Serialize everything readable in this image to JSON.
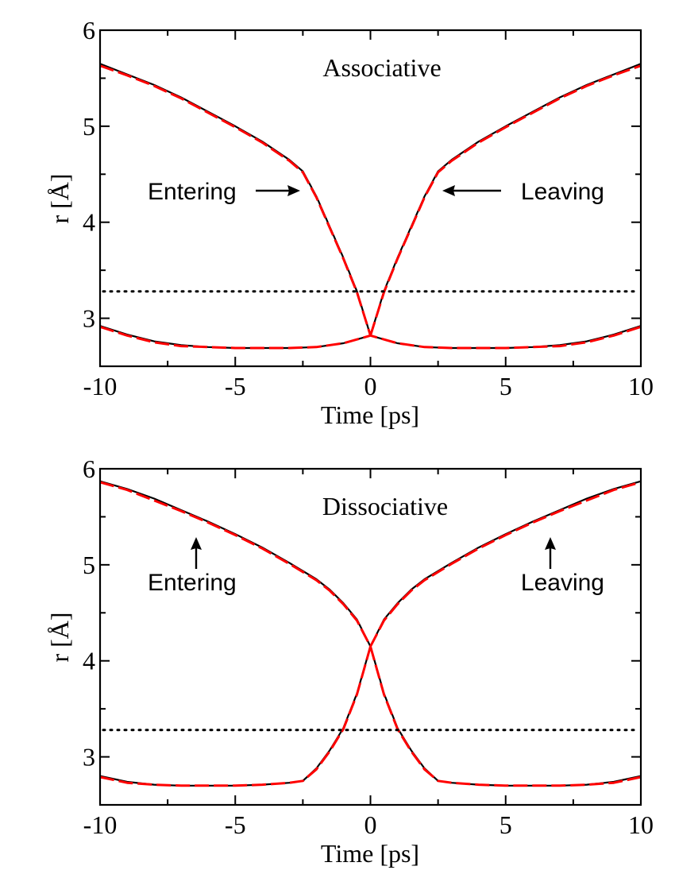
{
  "chart_data": [
    {
      "type": "line",
      "title": "Associative",
      "xlabel": "Time [ps]",
      "ylabel": "r [Å]",
      "xlim": [
        -10,
        10
      ],
      "ylim": [
        2.5,
        6.0
      ],
      "xticks": [
        -10,
        -5,
        0,
        5,
        10
      ],
      "xtick_labels": [
        "-10",
        "-5",
        "0",
        "5",
        "10"
      ],
      "yticks": [
        3,
        4,
        5,
        6
      ],
      "ytick_labels": [
        "3",
        "4",
        "5",
        "6"
      ],
      "reference_line": {
        "y": 3.28,
        "style": "dotted",
        "color": "#000000"
      },
      "annotations": [
        {
          "text": "Entering",
          "arrow_direction": "right",
          "points_to": {
            "x": -2.5,
            "y": 4.33
          }
        },
        {
          "text": "Leaving",
          "arrow_direction": "left",
          "points_to": {
            "x": 2.5,
            "y": 4.33
          }
        }
      ],
      "series": [
        {
          "style": "solid",
          "color": "#000000",
          "x": [
            -10,
            -9,
            -8,
            -7,
            -6,
            -5,
            -4,
            -3,
            -2.5,
            -2,
            -1.5,
            -1,
            -0.5,
            0
          ],
          "y": [
            5.65,
            5.54,
            5.43,
            5.3,
            5.15,
            5.0,
            4.84,
            4.65,
            4.53,
            4.27,
            3.95,
            3.63,
            3.28,
            2.82
          ]
        },
        {
          "style": "dashed",
          "color": "#ff0000",
          "x": [
            -10,
            -9,
            -8,
            -7,
            -6,
            -5,
            -4,
            -3,
            -2.5,
            -2,
            -1.5,
            -1,
            -0.5,
            0
          ],
          "y": [
            5.63,
            5.53,
            5.42,
            5.29,
            5.14,
            4.99,
            4.83,
            4.64,
            4.52,
            4.26,
            3.94,
            3.62,
            3.27,
            2.82
          ]
        },
        {
          "style": "solid",
          "color": "#000000",
          "x": [
            0,
            0.5,
            1,
            1.5,
            2,
            2.5,
            3,
            4,
            5,
            6,
            7,
            8,
            9,
            10
          ],
          "y": [
            2.82,
            3.28,
            3.63,
            3.95,
            4.27,
            4.53,
            4.65,
            4.84,
            5.0,
            5.15,
            5.3,
            5.43,
            5.54,
            5.65
          ]
        },
        {
          "style": "dashed",
          "color": "#ff0000",
          "x": [
            0,
            0.5,
            1,
            1.5,
            2,
            2.5,
            3,
            4,
            5,
            6,
            7,
            8,
            9,
            10
          ],
          "y": [
            2.82,
            3.27,
            3.62,
            3.94,
            4.26,
            4.52,
            4.64,
            4.83,
            4.99,
            5.14,
            5.29,
            5.42,
            5.53,
            5.63
          ]
        },
        {
          "style": "solid",
          "color": "#000000",
          "x": [
            -10,
            -9,
            -8,
            -7,
            -6,
            -5,
            -4,
            -3,
            -2,
            -1,
            -0.5,
            0,
            0.5,
            1,
            2,
            3,
            4,
            5,
            6,
            7,
            8,
            9,
            10
          ],
          "y": [
            2.92,
            2.83,
            2.76,
            2.72,
            2.7,
            2.69,
            2.69,
            2.69,
            2.7,
            2.74,
            2.78,
            2.82,
            2.78,
            2.74,
            2.7,
            2.69,
            2.69,
            2.69,
            2.7,
            2.72,
            2.76,
            2.83,
            2.92
          ]
        },
        {
          "style": "dashed",
          "color": "#ff0000",
          "x": [
            -10,
            -9,
            -8,
            -7,
            -6,
            -5,
            -4,
            -3,
            -2,
            -1,
            -0.5,
            0,
            0.5,
            1,
            2,
            3,
            4,
            5,
            6,
            7,
            8,
            9,
            10
          ],
          "y": [
            2.91,
            2.82,
            2.75,
            2.71,
            2.7,
            2.69,
            2.69,
            2.69,
            2.7,
            2.74,
            2.78,
            2.82,
            2.78,
            2.74,
            2.7,
            2.69,
            2.69,
            2.69,
            2.7,
            2.71,
            2.75,
            2.82,
            2.91
          ]
        }
      ]
    },
    {
      "type": "line",
      "title": "Dissociative",
      "xlabel": "Time [ps]",
      "ylabel": "r [Å]",
      "xlim": [
        -10,
        10
      ],
      "ylim": [
        2.5,
        6.0
      ],
      "xticks": [
        -10,
        -5,
        0,
        5,
        10
      ],
      "xtick_labels": [
        "-10",
        "-5",
        "0",
        "5",
        "10"
      ],
      "yticks": [
        3,
        4,
        5,
        6
      ],
      "ytick_labels": [
        "3",
        "4",
        "5",
        "6"
      ],
      "reference_line": {
        "y": 3.28,
        "style": "dotted",
        "color": "#000000"
      },
      "annotations": [
        {
          "text": "Entering",
          "arrow_direction": "up",
          "points_to": {
            "x": -6.5,
            "y": 5.48
          }
        },
        {
          "text": "Leaving",
          "arrow_direction": "up",
          "points_to": {
            "x": 6.7,
            "y": 5.48
          }
        }
      ],
      "series": [
        {
          "style": "solid",
          "color": "#000000",
          "x": [
            -10,
            -9,
            -8,
            -7,
            -6,
            -5,
            -4,
            -3,
            -2,
            -1.5,
            -1,
            -0.5,
            0
          ],
          "y": [
            5.87,
            5.79,
            5.69,
            5.57,
            5.45,
            5.32,
            5.18,
            5.02,
            4.85,
            4.74,
            4.6,
            4.43,
            4.15
          ]
        },
        {
          "style": "dashed",
          "color": "#ff0000",
          "x": [
            -10,
            -9,
            -8,
            -7,
            -6,
            -5,
            -4,
            -3,
            -2,
            -1.5,
            -1,
            -0.5,
            0
          ],
          "y": [
            5.86,
            5.78,
            5.67,
            5.56,
            5.44,
            5.31,
            5.17,
            5.01,
            4.84,
            4.73,
            4.59,
            4.42,
            4.15
          ]
        },
        {
          "style": "solid",
          "color": "#000000",
          "x": [
            0,
            0.5,
            1,
            1.5,
            2,
            3,
            4,
            5,
            6,
            7,
            8,
            9,
            10
          ],
          "y": [
            4.15,
            4.43,
            4.6,
            4.74,
            4.85,
            5.02,
            5.18,
            5.32,
            5.45,
            5.57,
            5.69,
            5.79,
            5.87
          ]
        },
        {
          "style": "dashed",
          "color": "#ff0000",
          "x": [
            0,
            0.5,
            1,
            1.5,
            2,
            3,
            4,
            5,
            6,
            7,
            8,
            9,
            10
          ],
          "y": [
            4.15,
            4.42,
            4.59,
            4.73,
            4.84,
            5.01,
            5.17,
            5.31,
            5.44,
            5.56,
            5.67,
            5.78,
            5.86
          ]
        },
        {
          "style": "solid",
          "color": "#000000",
          "x": [
            -10,
            -9,
            -8,
            -7,
            -6,
            -5,
            -4,
            -3,
            -2.5,
            -2,
            -1.5,
            -1,
            -0.5,
            0
          ],
          "y": [
            2.8,
            2.74,
            2.71,
            2.7,
            2.7,
            2.7,
            2.71,
            2.73,
            2.75,
            2.88,
            3.07,
            3.3,
            3.66,
            4.15
          ]
        },
        {
          "style": "dashed",
          "color": "#ff0000",
          "x": [
            -10,
            -9,
            -8,
            -7,
            -6,
            -5,
            -4,
            -3,
            -2.5,
            -2,
            -1.5,
            -1,
            -0.5,
            0
          ],
          "y": [
            2.79,
            2.73,
            2.71,
            2.7,
            2.7,
            2.7,
            2.71,
            2.73,
            2.75,
            2.87,
            3.06,
            3.29,
            3.65,
            4.15
          ]
        },
        {
          "style": "solid",
          "color": "#000000",
          "x": [
            0,
            0.5,
            1,
            1.5,
            2,
            2.5,
            3,
            4,
            5,
            6,
            7,
            8,
            9,
            10
          ],
          "y": [
            4.15,
            3.66,
            3.3,
            3.07,
            2.88,
            2.75,
            2.73,
            2.71,
            2.7,
            2.7,
            2.7,
            2.71,
            2.74,
            2.8
          ]
        },
        {
          "style": "dashed",
          "color": "#ff0000",
          "x": [
            0,
            0.5,
            1,
            1.5,
            2,
            2.5,
            3,
            4,
            5,
            6,
            7,
            8,
            9,
            10
          ],
          "y": [
            4.15,
            3.65,
            3.29,
            3.06,
            2.87,
            2.75,
            2.73,
            2.71,
            2.7,
            2.7,
            2.7,
            2.71,
            2.73,
            2.79
          ]
        }
      ]
    }
  ]
}
